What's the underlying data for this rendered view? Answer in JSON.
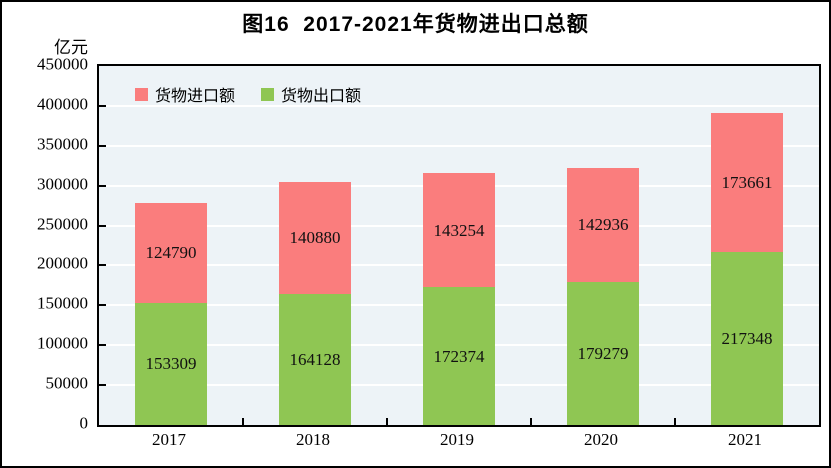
{
  "title": "图16  2017-2021年货物进出口总额",
  "y_axis_unit": "亿元",
  "colors": {
    "import_series": "#FA7D7D",
    "export_series": "#8FC653",
    "plot_background": "#EDF3F7",
    "gridline": "#FFFFFF",
    "axis": "#000000"
  },
  "legend": [
    {
      "label": "货物进口额",
      "series": "import",
      "swatch_color": "#FA7D7D"
    },
    {
      "label": "货物出口额",
      "series": "export",
      "swatch_color": "#8FC653"
    }
  ],
  "chart_data": {
    "type": "bar",
    "stacked": true,
    "title": "图16  2017-2021年货物进出口总额",
    "ylabel": "亿元",
    "xlabel": "",
    "categories": [
      "2017",
      "2018",
      "2019",
      "2020",
      "2021"
    ],
    "series": [
      {
        "name": "货物出口额",
        "key": "export",
        "color": "#8FC653",
        "values": [
          153309,
          164128,
          172374,
          179279,
          217348
        ]
      },
      {
        "name": "货物进口额",
        "key": "import",
        "color": "#FA7D7D",
        "values": [
          124790,
          140880,
          143254,
          142936,
          173661
        ]
      }
    ],
    "data_labels": true,
    "ylim": [
      0,
      450000
    ],
    "ytick_step": 50000,
    "ytick_labels": [
      "0",
      "50000",
      "100000",
      "150000",
      "200000",
      "250000",
      "300000",
      "350000",
      "400000",
      "450000"
    ],
    "grid": true,
    "legend_position": "top-left-inside"
  }
}
